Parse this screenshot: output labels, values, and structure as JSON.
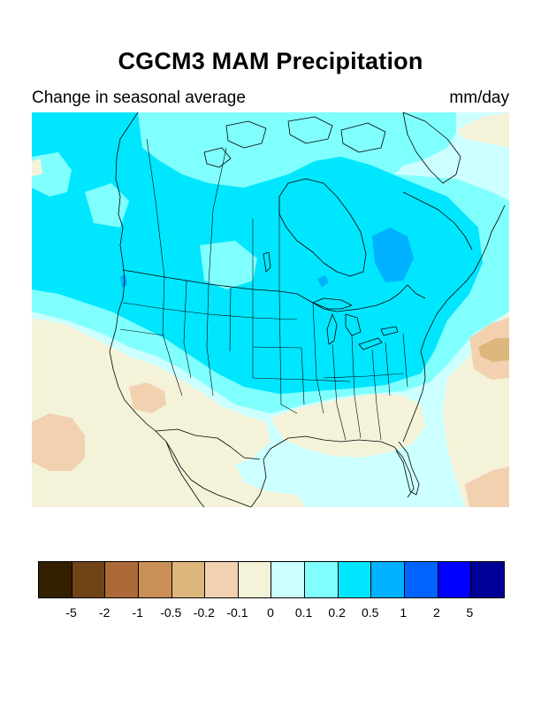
{
  "header": {
    "title": "CGCM3 MAM Precipitation",
    "subtitle_left": "Change in seasonal average",
    "subtitle_right": "mm/day"
  },
  "legend": {
    "colors": [
      "#332000",
      "#714417",
      "#ab6a38",
      "#c98f55",
      "#ddb67c",
      "#f2d1b1",
      "#f4f2d9",
      "#ccffff",
      "#80ffff",
      "#00e6ff",
      "#00b1ff",
      "#0063ff",
      "#0000ff",
      "#000096"
    ],
    "labels": [
      "-5",
      "-2",
      "-1",
      "-0.5",
      "-0.2",
      "-0.1",
      "0",
      "0.1",
      "0.2",
      "0.5",
      "1",
      "2",
      "5"
    ]
  }
}
